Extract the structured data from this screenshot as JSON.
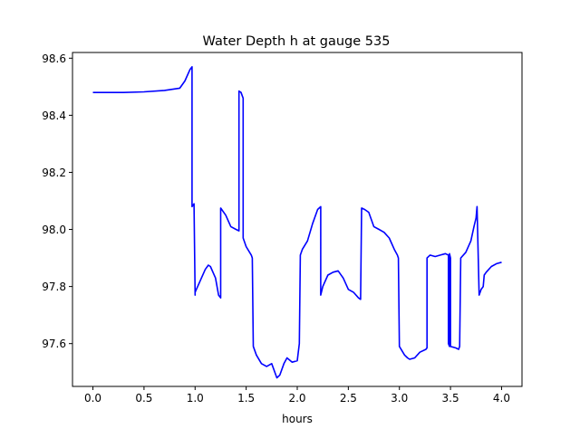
{
  "chart_data": {
    "type": "line",
    "title": "Water Depth h at gauge 535",
    "xlabel": "hours",
    "ylabel": "",
    "xlim": [
      -0.2,
      4.2
    ],
    "ylim": [
      97.45,
      98.62
    ],
    "xticks": [
      0.0,
      0.5,
      1.0,
      1.5,
      2.0,
      2.5,
      3.0,
      3.5,
      4.0
    ],
    "xtick_labels": [
      "0.0",
      "0.5",
      "1.0",
      "1.5",
      "2.0",
      "2.5",
      "3.0",
      "3.5",
      "4.0"
    ],
    "yticks": [
      97.6,
      97.8,
      98.0,
      98.2,
      98.4,
      98.6
    ],
    "ytick_labels": [
      "97.6",
      "97.8",
      "98.0",
      "98.2",
      "98.4",
      "98.6"
    ],
    "grid": false,
    "legend": "none",
    "series": [
      {
        "color": "#0000ff",
        "x": [
          0.0,
          0.3,
          0.5,
          0.7,
          0.85,
          0.9,
          0.95,
          0.97,
          0.97,
          0.99,
          1.0,
          1.0,
          1.05,
          1.1,
          1.13,
          1.15,
          1.2,
          1.23,
          1.25,
          1.25,
          1.3,
          1.35,
          1.4,
          1.43,
          1.43,
          1.45,
          1.46,
          1.47,
          1.47,
          1.5,
          1.55,
          1.56,
          1.57,
          1.6,
          1.65,
          1.7,
          1.75,
          1.8,
          1.83,
          1.87,
          1.9,
          1.95,
          2.0,
          2.02,
          2.03,
          2.05,
          2.1,
          2.15,
          2.2,
          2.23,
          2.23,
          2.25,
          2.3,
          2.35,
          2.4,
          2.45,
          2.5,
          2.55,
          2.6,
          2.62,
          2.63,
          2.66,
          2.7,
          2.75,
          2.8,
          2.85,
          2.9,
          2.95,
          2.98,
          2.99,
          3.0,
          3.05,
          3.08,
          3.1,
          3.15,
          3.2,
          3.26,
          3.27,
          3.27,
          3.3,
          3.35,
          3.4,
          3.45,
          3.48,
          3.48,
          3.49,
          3.49,
          3.5,
          3.5,
          3.55,
          3.58,
          3.59,
          3.6,
          3.65,
          3.7,
          3.73,
          3.75,
          3.76,
          3.78,
          3.8,
          3.82,
          3.83,
          3.85,
          3.9,
          3.95,
          4.0
        ],
        "y": [
          98.48,
          98.48,
          98.482,
          98.487,
          98.495,
          98.52,
          98.56,
          98.57,
          98.08,
          98.09,
          97.77,
          97.78,
          97.82,
          97.86,
          97.875,
          97.87,
          97.83,
          97.77,
          97.76,
          98.075,
          98.05,
          98.01,
          98.0,
          97.995,
          98.485,
          98.48,
          98.47,
          98.46,
          97.97,
          97.94,
          97.91,
          97.9,
          97.59,
          97.56,
          97.53,
          97.52,
          97.53,
          97.48,
          97.49,
          97.53,
          97.55,
          97.535,
          97.54,
          97.6,
          97.91,
          97.93,
          97.96,
          98.02,
          98.07,
          98.08,
          97.77,
          97.8,
          97.84,
          97.85,
          97.855,
          97.83,
          97.79,
          97.78,
          97.76,
          97.755,
          98.075,
          98.07,
          98.06,
          98.01,
          98.0,
          97.99,
          97.97,
          97.93,
          97.91,
          97.9,
          97.59,
          97.56,
          97.55,
          97.545,
          97.55,
          97.57,
          97.58,
          97.585,
          97.9,
          97.91,
          97.905,
          97.91,
          97.915,
          97.91,
          97.6,
          97.59,
          97.915,
          97.9,
          97.59,
          97.585,
          97.58,
          97.59,
          97.9,
          97.92,
          97.96,
          98.01,
          98.04,
          98.08,
          97.77,
          97.79,
          97.8,
          97.84,
          97.85,
          97.87,
          97.88,
          97.885
        ]
      }
    ]
  }
}
